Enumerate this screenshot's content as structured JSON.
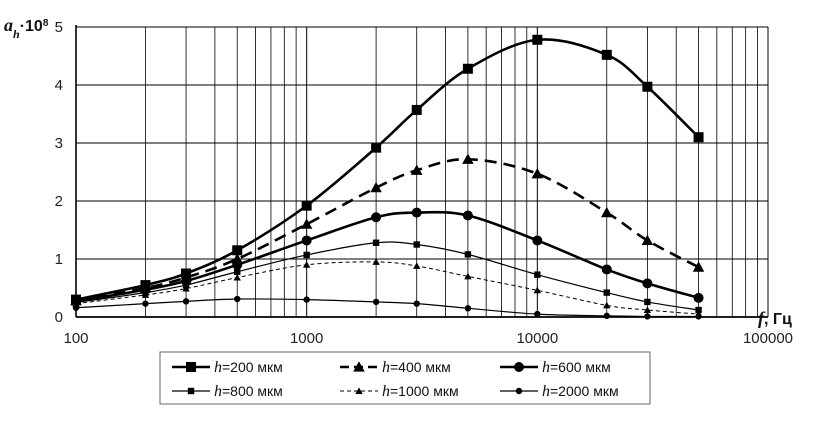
{
  "chart_data": {
    "type": "line",
    "x_scale": "log",
    "xlim": [
      100,
      100000
    ],
    "ylim": [
      0,
      5
    ],
    "x_ticks": [
      "100",
      "1000",
      "10000",
      "100000"
    ],
    "y_ticks": [
      "0",
      "1",
      "2",
      "3",
      "4",
      "5"
    ],
    "ylabel": {
      "symbol": "a",
      "subscript": "h",
      "factor": "·10",
      "exponent": "8"
    },
    "xlabel": {
      "symbol": "f",
      "unit": ", Гц"
    },
    "grid": true,
    "legend_placement": "bottom",
    "x": [
      100,
      200,
      300,
      500,
      1000,
      2000,
      3000,
      5000,
      10000,
      20000,
      30000,
      50000
    ],
    "series": [
      {
        "name": "=200 мкм",
        "prefix": "h",
        "marker": "square",
        "line": "solid-thick",
        "values": [
          0.3,
          0.55,
          0.75,
          1.15,
          1.92,
          2.92,
          3.57,
          4.28,
          4.78,
          4.52,
          3.97,
          3.1
        ]
      },
      {
        "name": "=400 мкм",
        "prefix": "h",
        "marker": "triangle",
        "line": "dashed-thick",
        "values": [
          0.28,
          0.5,
          0.68,
          1.0,
          1.6,
          2.23,
          2.53,
          2.72,
          2.47,
          1.8,
          1.32,
          0.86
        ]
      },
      {
        "name": "=600 мкм",
        "prefix": "h",
        "marker": "circle",
        "line": "solid-thick",
        "values": [
          0.27,
          0.47,
          0.62,
          0.9,
          1.32,
          1.72,
          1.8,
          1.75,
          1.32,
          0.82,
          0.58,
          0.33
        ]
      },
      {
        "name": "=800 мкм",
        "prefix": "h",
        "marker": "square-small",
        "line": "solid-thin",
        "values": [
          0.25,
          0.42,
          0.55,
          0.78,
          1.07,
          1.28,
          1.25,
          1.08,
          0.73,
          0.42,
          0.26,
          0.12
        ]
      },
      {
        "name": "=1000 мкм",
        "prefix": "h",
        "marker": "triangle-small",
        "line": "dashed-thin",
        "values": [
          0.23,
          0.38,
          0.49,
          0.68,
          0.9,
          0.95,
          0.88,
          0.7,
          0.46,
          0.2,
          0.12,
          0.05
        ]
      },
      {
        "name": "=2000 мкм",
        "prefix": "h",
        "marker": "circle-small",
        "line": "solid-thin",
        "values": [
          0.16,
          0.23,
          0.27,
          0.31,
          0.3,
          0.26,
          0.23,
          0.15,
          0.05,
          0.02,
          0.01,
          0.01
        ]
      }
    ]
  }
}
